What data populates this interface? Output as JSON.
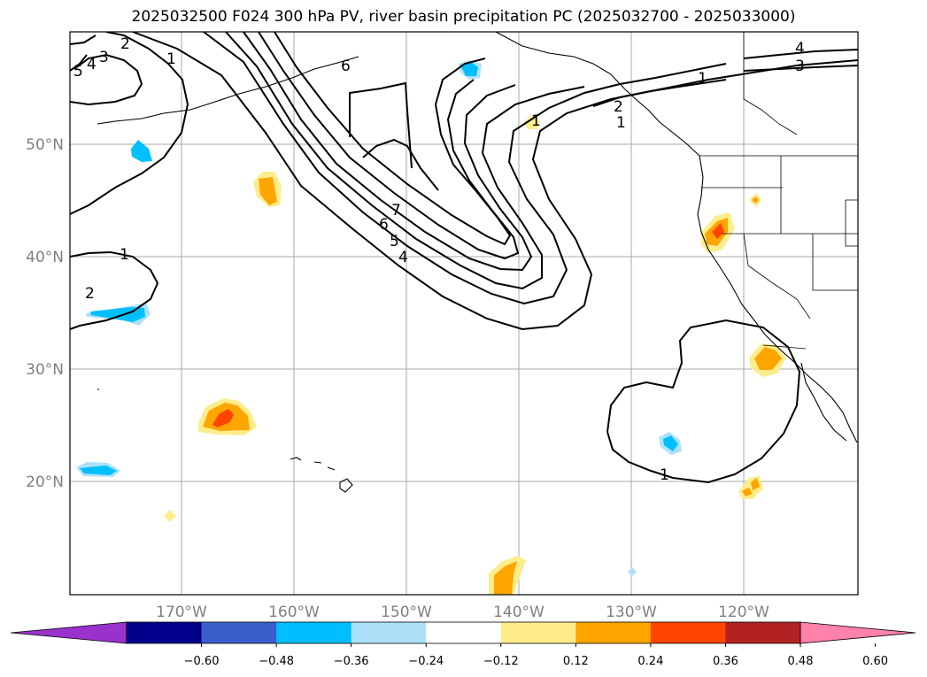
{
  "title": "2025032500 F024 300 hPa PV, river basin precipitation PC (2025032700 - 2025033000)",
  "map": {
    "lat_labels": [
      "50°N",
      "40°N",
      "30°N",
      "20°N"
    ],
    "lon_labels": [
      "170°W",
      "160°W",
      "150°W",
      "140°W",
      "130°W",
      "120°W"
    ],
    "gridlines": true,
    "contour_labels": [
      "2",
      "3",
      "4",
      "5",
      "1",
      "6",
      "2",
      "1",
      "1",
      "7",
      "6",
      "5",
      "4",
      "2",
      "1",
      "4",
      "3",
      "1",
      "1"
    ]
  },
  "colorbar": {
    "ticks": [
      "−0.60",
      "−0.48",
      "−0.36",
      "−0.24",
      "−0.12",
      "0.12",
      "0.24",
      "0.36",
      "0.48",
      "0.60"
    ],
    "colors": [
      "#9932CC",
      "#00008B",
      "#3A5FCD",
      "#00BFFF",
      "#ADE1FA",
      "#FFFFFF",
      "#FFEC8B",
      "#FFA500",
      "#FF4500",
      "#B22222",
      "#FF82AB"
    ]
  }
}
